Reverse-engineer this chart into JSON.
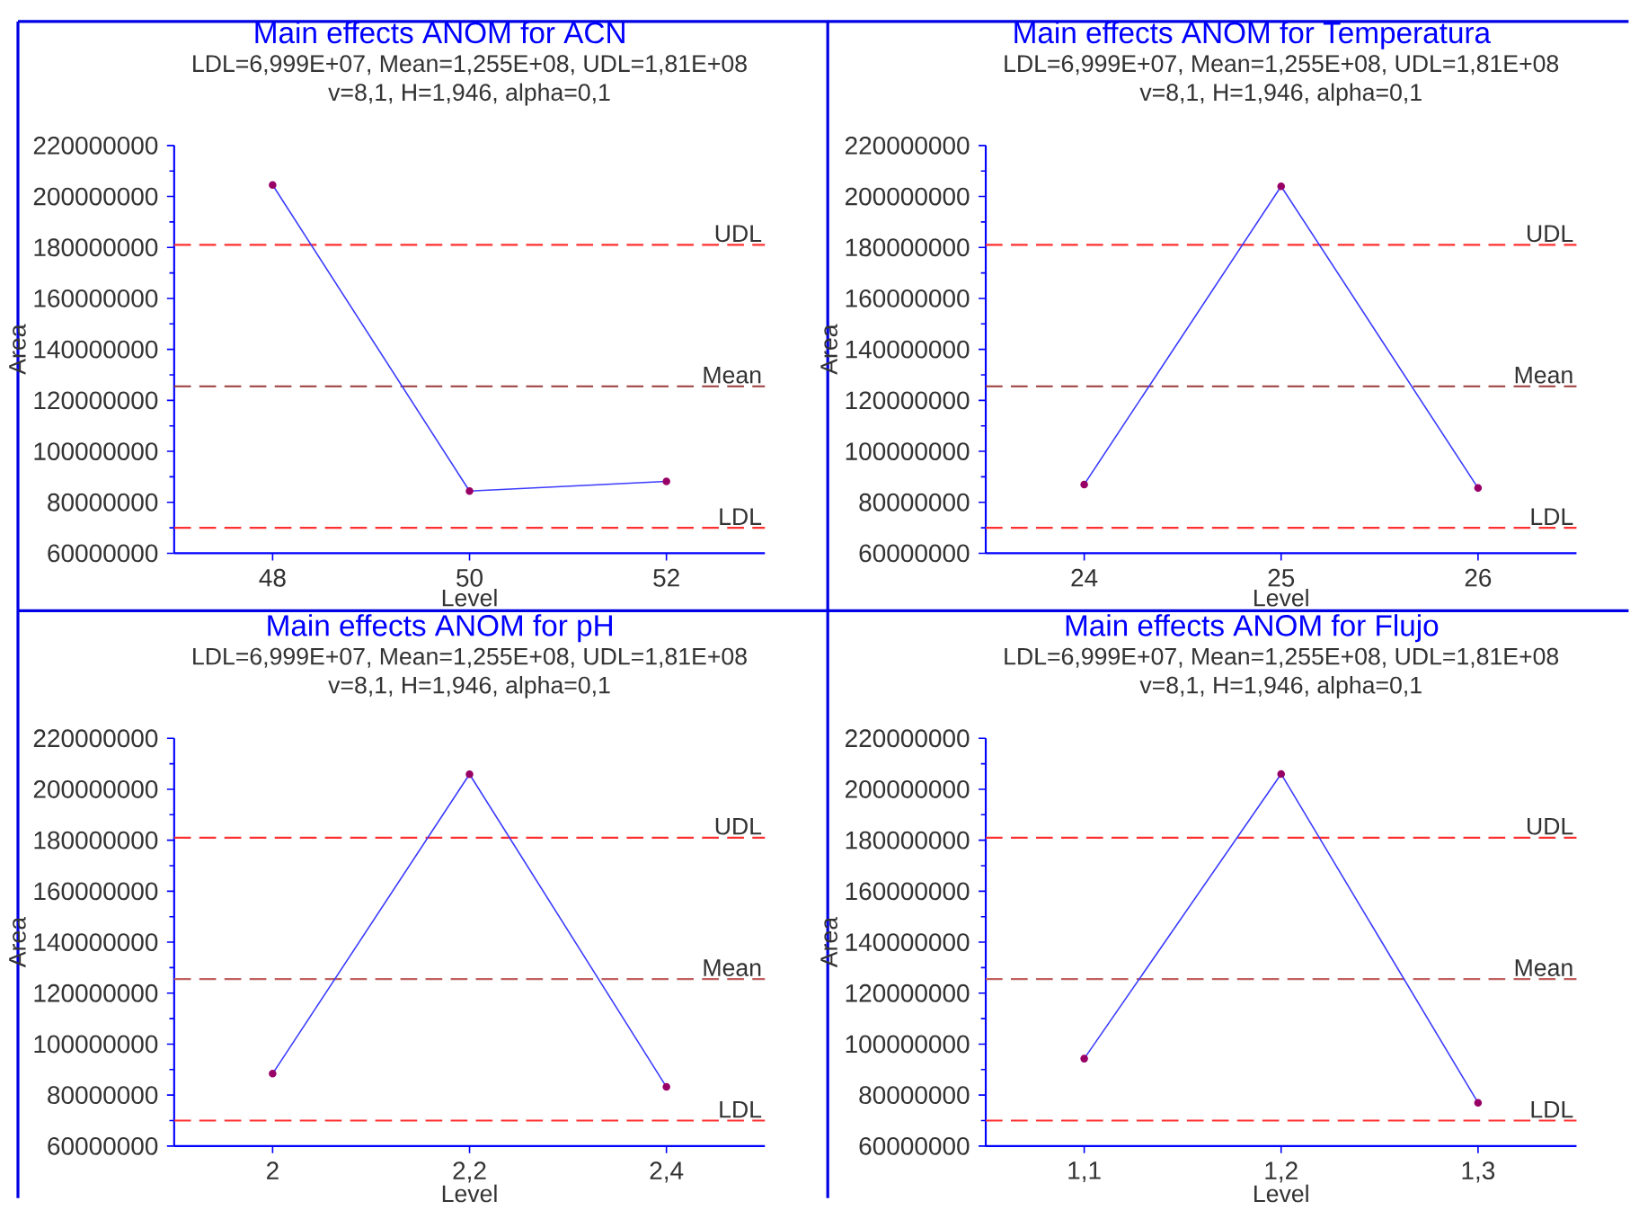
{
  "chart_data": [
    {
      "type": "line",
      "title": "Main effects ANOM for ACN",
      "subtitle": "LDL=6,999E+07, Mean=1,255E+08, UDL=1,81E+08",
      "annotations": [
        "v=8,1, H=1,946, alpha=0,1"
      ],
      "xlabel": "Level",
      "ylabel": "Area",
      "marker": "circle",
      "grid": false,
      "x": [
        48,
        50,
        52
      ],
      "series": [
        {
          "color": "#3c3cff",
          "values": [
            204500000,
            84400000,
            88200000
          ]
        }
      ],
      "xlim": [
        47,
        53
      ],
      "xticks": [
        48,
        50,
        52
      ],
      "ylim": [
        60000000,
        220000000
      ],
      "yticks": [
        60000000,
        80000000,
        100000000,
        120000000,
        140000000,
        160000000,
        180000000,
        200000000,
        220000000
      ],
      "ref_lines": [
        {
          "axis": "y",
          "value": 181000000,
          "label": "UDL",
          "color": "#ff3030",
          "line_style": "dashed"
        },
        {
          "axis": "y",
          "value": 125500000,
          "label": "Mean",
          "color": "#9a3a3a",
          "line_style": "dashed"
        },
        {
          "axis": "y",
          "value": 69990000,
          "label": "LDL",
          "color": "#ff3030",
          "line_style": "dashed"
        }
      ]
    },
    {
      "type": "line",
      "title": "Main effects ANOM for Temperatura",
      "subtitle": "LDL=6,999E+07, Mean=1,255E+08, UDL=1,81E+08",
      "annotations": [
        "v=8,1, H=1,946, alpha=0,1"
      ],
      "xlabel": "Level",
      "ylabel": "Area",
      "marker": "circle",
      "grid": false,
      "x": [
        24,
        25,
        26
      ],
      "series": [
        {
          "color": "#3c3cff",
          "values": [
            87000000,
            204000000,
            85600000
          ]
        }
      ],
      "xlim": [
        23.5,
        26.5
      ],
      "xticks": [
        24,
        25,
        26
      ],
      "ylim": [
        60000000,
        220000000
      ],
      "yticks": [
        60000000,
        80000000,
        100000000,
        120000000,
        140000000,
        160000000,
        180000000,
        200000000,
        220000000
      ],
      "ref_lines": [
        {
          "axis": "y",
          "value": 181000000,
          "label": "UDL",
          "color": "#ff3030",
          "line_style": "dashed"
        },
        {
          "axis": "y",
          "value": 125500000,
          "label": "Mean",
          "color": "#9a3a3a",
          "line_style": "dashed"
        },
        {
          "axis": "y",
          "value": 69990000,
          "label": "LDL",
          "color": "#ff3030",
          "line_style": "dashed"
        }
      ]
    },
    {
      "type": "line",
      "title": "Main effects ANOM for pH",
      "subtitle": "LDL=6,999E+07, Mean=1,255E+08, UDL=1,81E+08",
      "annotations": [
        "v=8,1, H=1,946, alpha=0,1"
      ],
      "xlabel": "Level",
      "ylabel": "Area",
      "marker": "circle",
      "grid": false,
      "x": [
        2,
        2.2,
        2.4
      ],
      "series": [
        {
          "color": "#3c3cff",
          "values": [
            88400000,
            205900000,
            83200000
          ]
        }
      ],
      "xlim": [
        1.9,
        2.5
      ],
      "xticks": [
        2,
        {
          "value": 2.2,
          "label": "2,2"
        },
        {
          "value": 2.4,
          "label": "2,4"
        }
      ],
      "ylim": [
        60000000,
        220000000
      ],
      "yticks": [
        60000000,
        80000000,
        100000000,
        120000000,
        140000000,
        160000000,
        180000000,
        200000000,
        220000000
      ],
      "ref_lines": [
        {
          "axis": "y",
          "value": 181000000,
          "label": "UDL",
          "color": "#ff3030",
          "line_style": "dashed"
        },
        {
          "axis": "y",
          "value": 125500000,
          "label": "Mean",
          "color": "#c06060",
          "line_style": "dashed"
        },
        {
          "axis": "y",
          "value": 69990000,
          "label": "LDL",
          "color": "#ff3030",
          "line_style": "dashed"
        }
      ]
    },
    {
      "type": "line",
      "title": "Main effects ANOM for Flujo",
      "subtitle": "LDL=6,999E+07, Mean=1,255E+08, UDL=1,81E+08",
      "annotations": [
        "v=8,1, H=1,946, alpha=0,1"
      ],
      "xlabel": "Level",
      "ylabel": "Area",
      "marker": "circle",
      "grid": false,
      "x": [
        1.1,
        1.2,
        1.3
      ],
      "series": [
        {
          "color": "#3c3cff",
          "values": [
            94300000,
            206000000,
            77000000
          ]
        }
      ],
      "xlim": [
        1.05,
        1.35
      ],
      "xticks": [
        {
          "value": 1.1,
          "label": "1,1"
        },
        {
          "value": 1.2,
          "label": "1,2"
        },
        {
          "value": 1.3,
          "label": "1,3"
        }
      ],
      "ylim": [
        60000000,
        220000000
      ],
      "yticks": [
        60000000,
        80000000,
        100000000,
        120000000,
        140000000,
        160000000,
        180000000,
        200000000,
        220000000
      ],
      "ref_lines": [
        {
          "axis": "y",
          "value": 181000000,
          "label": "UDL",
          "color": "#ff3030",
          "line_style": "dashed"
        },
        {
          "axis": "y",
          "value": 125500000,
          "label": "Mean",
          "color": "#c06060",
          "line_style": "dashed"
        },
        {
          "axis": "y",
          "value": 69990000,
          "label": "LDL",
          "color": "#ff3030",
          "line_style": "dashed"
        }
      ]
    }
  ]
}
